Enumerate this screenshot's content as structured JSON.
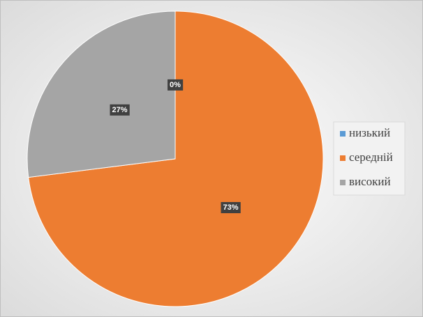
{
  "chart_data": {
    "type": "pie",
    "categories": [
      "низький",
      "середній",
      "високий"
    ],
    "values": [
      0,
      73,
      27
    ],
    "value_labels": [
      "0%",
      "73%",
      "27%"
    ],
    "colors": [
      "#5b9bd5",
      "#ed7d31",
      "#a5a5a5"
    ],
    "legend": "right"
  }
}
